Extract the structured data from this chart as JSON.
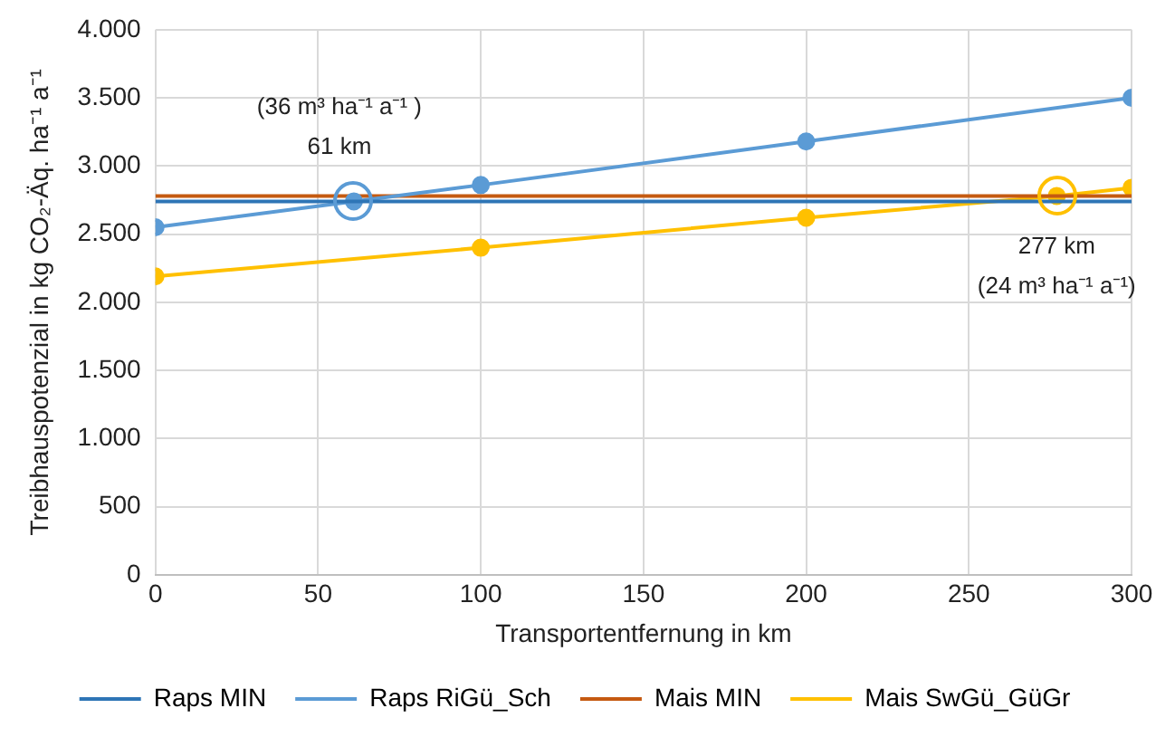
{
  "chart_data": {
    "type": "line",
    "xlabel": "Transportentfernung in km",
    "ylabel": "Treibhauspotenzial in kg CO₂-Äq. ha⁻¹ a⁻¹",
    "xlim": [
      0,
      300
    ],
    "xticks": [
      0,
      50,
      100,
      150,
      200,
      250,
      300
    ],
    "ylim": [
      0,
      4000
    ],
    "yticks": [
      {
        "value": 0,
        "label": "0"
      },
      {
        "value": 500,
        "label": "500"
      },
      {
        "value": 1000,
        "label": "1.000"
      },
      {
        "value": 1500,
        "label": "1.500"
      },
      {
        "value": 2000,
        "label": "2.000"
      },
      {
        "value": 2500,
        "label": "2.500"
      },
      {
        "value": 3000,
        "label": "3.000"
      },
      {
        "value": 3500,
        "label": "3.500"
      },
      {
        "value": 4000,
        "label": "4.000"
      }
    ],
    "grid": true,
    "legend": "bottom",
    "marker": "circle",
    "line_style": "solid",
    "series": [
      {
        "name": "Raps MIN",
        "color": "#2e75b6",
        "x": [
          0,
          300
        ],
        "values": [
          2740,
          2740
        ],
        "marker": "none"
      },
      {
        "name": "Raps RiGü_Sch",
        "color": "#5b9bd5",
        "x": [
          0,
          61,
          100,
          200,
          300
        ],
        "values": [
          2550,
          2740,
          2860,
          3180,
          3500
        ]
      },
      {
        "name": "Mais MIN",
        "color": "#c55a11",
        "x": [
          0,
          300
        ],
        "values": [
          2780,
          2780
        ],
        "marker": "none"
      },
      {
        "name": "Mais SwGü_GüGr",
        "color": "#ffc000",
        "x": [
          0,
          100,
          200,
          277,
          300
        ],
        "values": [
          2190,
          2400,
          2620,
          2780,
          2840
        ]
      }
    ],
    "annotations": [
      {
        "text": "(36 m³ ha⁻¹ a⁻¹ )\n61 km",
        "x": 61,
        "y": 2740
      },
      {
        "text": "277 km\n(24 m³ ha⁻¹ a⁻¹)",
        "x": 277,
        "y": 2780
      }
    ]
  }
}
